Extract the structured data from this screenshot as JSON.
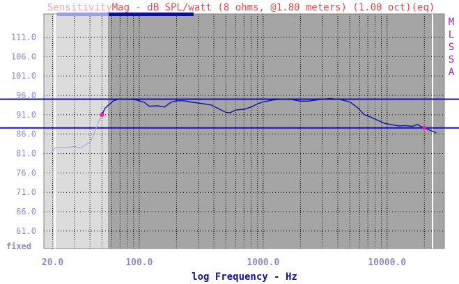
{
  "chart_data": {
    "type": "line",
    "title_faded": "Sensitivity",
    "title": "Mag - dB SPL/watt (8 ohms, @1.80 meters) (1.00 oct)(eq)",
    "xlabel": "log Frequency - Hz",
    "side_label": [
      "M",
      "L",
      "S",
      "S",
      "A"
    ],
    "corner_label": "fixed",
    "x_scale": "log",
    "xlim": [
      17,
      29000
    ],
    "ylim": [
      56.5,
      117
    ],
    "y_ticks": [
      "111.0",
      "106.0",
      "101.0",
      "96.0",
      "91.0",
      "86.0",
      "81.0",
      "76.0",
      "71.0",
      "66.0",
      "61.0"
    ],
    "x_ticks": [
      "20.0",
      "100.0",
      "1000.0",
      "10000.0"
    ],
    "reference_lines": [
      95.0,
      87.6
    ],
    "gated_region_below_hz": 50,
    "markers": [
      [
        50,
        91.0
      ],
      [
        20000,
        87.6
      ]
    ],
    "series": [
      {
        "values": [
          [
            19,
            81.0
          ],
          [
            20,
            81.4
          ],
          [
            21,
            82.5
          ],
          [
            23,
            82.5
          ],
          [
            26,
            82.6
          ],
          [
            30,
            82.8
          ],
          [
            34,
            82.5
          ],
          [
            38,
            83.5
          ],
          [
            41,
            84.3
          ],
          [
            44,
            86.8
          ],
          [
            47,
            89.3
          ],
          [
            50,
            91.0
          ],
          [
            53,
            92.7
          ],
          [
            57,
            93.6
          ],
          [
            62,
            94.6
          ],
          [
            68,
            95.0
          ],
          [
            75,
            95.0
          ],
          [
            85,
            95.0
          ],
          [
            95,
            94.8
          ],
          [
            110,
            94.2
          ],
          [
            120,
            93.2
          ],
          [
            140,
            93.3
          ],
          [
            160,
            93.0
          ],
          [
            180,
            94.2
          ],
          [
            200,
            94.6
          ],
          [
            230,
            94.6
          ],
          [
            270,
            94.2
          ],
          [
            320,
            93.9
          ],
          [
            380,
            93.5
          ],
          [
            440,
            92.5
          ],
          [
            500,
            91.6
          ],
          [
            540,
            91.5
          ],
          [
            600,
            92.2
          ],
          [
            700,
            92.4
          ],
          [
            800,
            93.0
          ],
          [
            900,
            93.8
          ],
          [
            1000,
            94.3
          ],
          [
            1200,
            94.8
          ],
          [
            1400,
            95.0
          ],
          [
            1700,
            94.9
          ],
          [
            2000,
            94.5
          ],
          [
            2300,
            94.5
          ],
          [
            2700,
            94.8
          ],
          [
            3000,
            95.0
          ],
          [
            3500,
            95.2
          ],
          [
            4200,
            94.9
          ],
          [
            5000,
            94.3
          ],
          [
            5800,
            92.8
          ],
          [
            6500,
            91.1
          ],
          [
            7500,
            90.3
          ],
          [
            8500,
            89.5
          ],
          [
            9500,
            88.8
          ],
          [
            11000,
            88.4
          ],
          [
            12500,
            88.1
          ],
          [
            14000,
            88.2
          ],
          [
            16000,
            88.0
          ],
          [
            17500,
            88.5
          ],
          [
            19000,
            87.9
          ],
          [
            21000,
            87.3
          ],
          [
            23000,
            86.8
          ],
          [
            25000,
            86.3
          ]
        ]
      }
    ],
    "colors": {
      "curve": "#1010a0",
      "curve_gated": "#a8a8e0",
      "reference_line": "#1010c8",
      "marker": "#e020a0",
      "plot_bg": "#a5a5a5",
      "gated_bg": "#dcdcdc"
    }
  }
}
